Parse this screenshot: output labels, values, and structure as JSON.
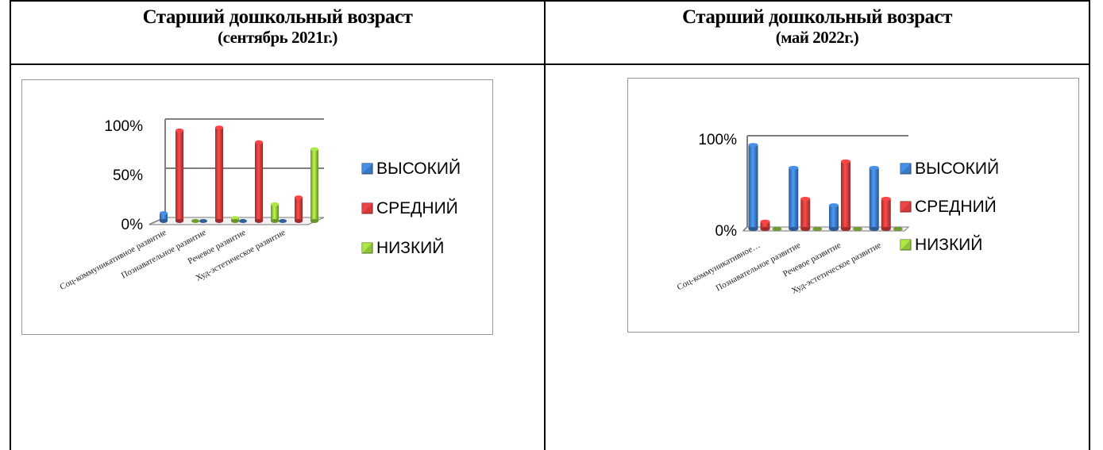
{
  "headers": [
    {
      "title": "Старший дошкольный возраст",
      "period": "(сентябрь 2021г.)"
    },
    {
      "title": "Старший дошкольный возраст",
      "period": "(май 2022г.)"
    }
  ],
  "colors": {
    "high": "#3a78c2",
    "medium": "#d43a3a",
    "low": "#8fc23a",
    "wall": "#808080"
  },
  "chart_data": [
    {
      "type": "bar",
      "categories": [
        "Соц-коммуникативное развитие",
        "Познавательное развитие",
        "Речевое развитие",
        "Худ-эстетическое развитие"
      ],
      "series": [
        {
          "name": "ВЫСОКИЙ",
          "values": [
            8,
            0,
            0,
            0
          ]
        },
        {
          "name": "СРЕДНИЙ",
          "values": [
            92,
            95,
            80,
            24
          ]
        },
        {
          "name": "НИЗКИЙ",
          "values": [
            0,
            3,
            17,
            73
          ]
        }
      ],
      "yticks": [
        "100%",
        "50%",
        "0%"
      ],
      "ylim": [
        0,
        100
      ],
      "legend": "right"
    },
    {
      "type": "bar",
      "categories": [
        "Соц-коммуникативное…",
        "Познавательное развитие",
        "Речевое развитие",
        "Худ-эстетическое развитие"
      ],
      "series": [
        {
          "name": "ВЫСОКИЙ",
          "values": [
            92,
            67,
            26,
            67
          ]
        },
        {
          "name": "СРЕДНИЙ",
          "values": [
            8,
            33,
            74,
            33
          ]
        },
        {
          "name": "НИЗКИЙ",
          "values": [
            0,
            0,
            0,
            0
          ]
        }
      ],
      "yticks": [
        "100%",
        "0%"
      ],
      "ylim": [
        0,
        100
      ],
      "legend": "right"
    }
  ]
}
